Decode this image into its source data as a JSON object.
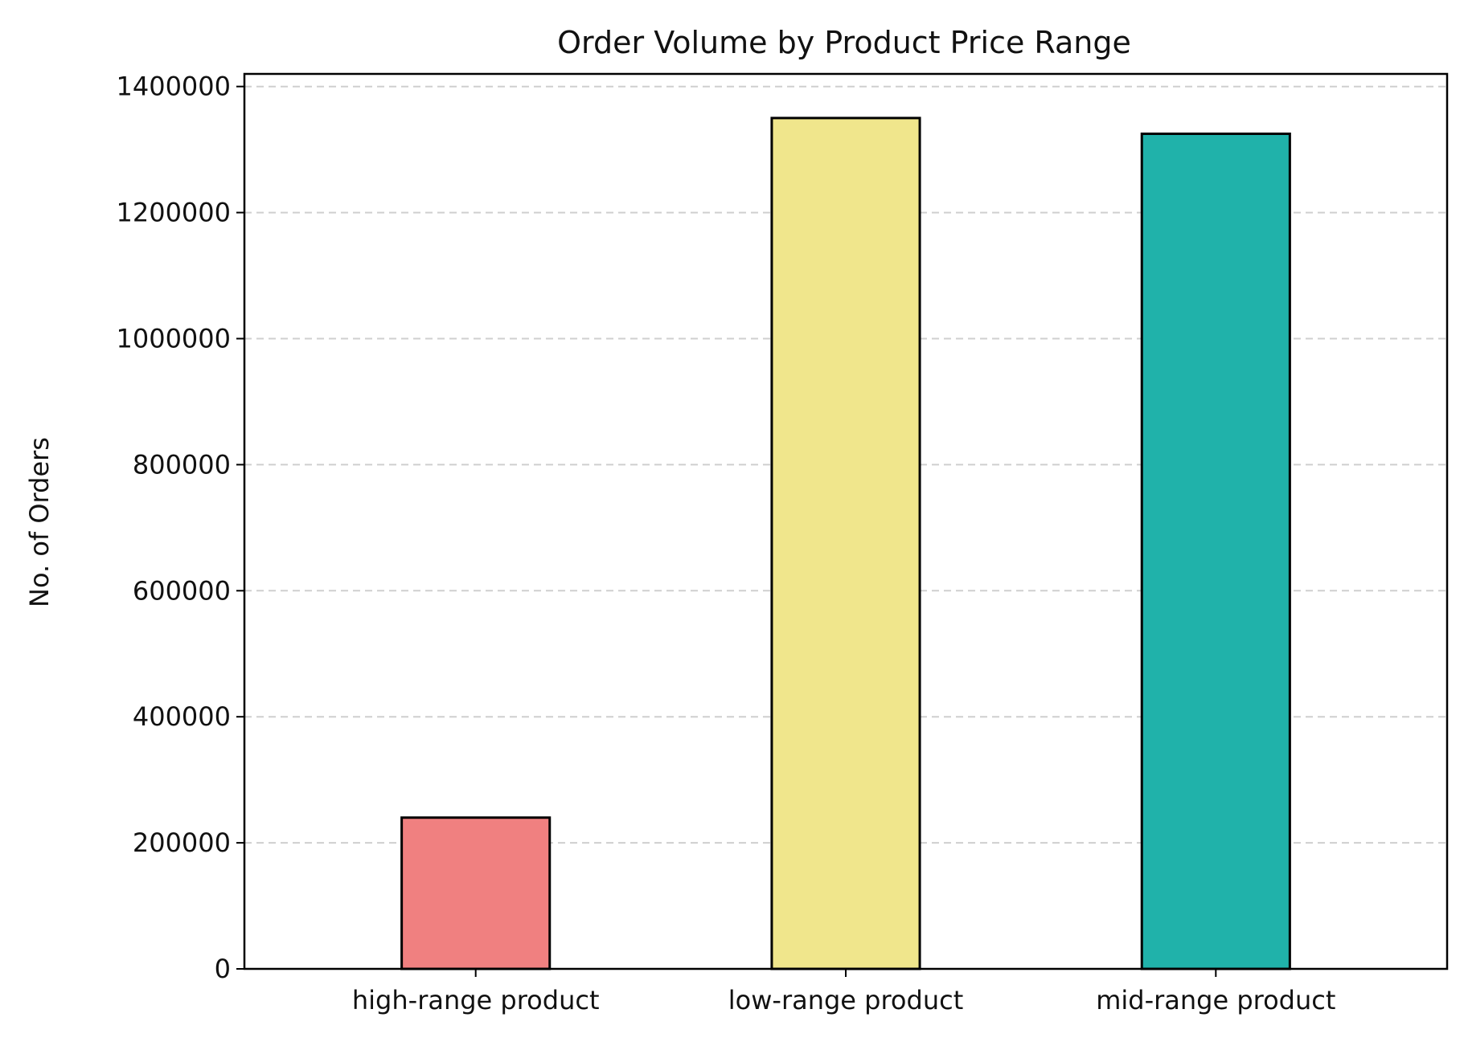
{
  "chart_data": {
    "type": "bar",
    "title": "Order Volume by Product Price Range",
    "xlabel": "",
    "ylabel": "No. of Orders",
    "categories": [
      "high-range product",
      "low-range product",
      "mid-range product"
    ],
    "values": [
      240000,
      1350000,
      1325000
    ],
    "colors": [
      "#f08080",
      "#f0e68c",
      "#20b2aa"
    ],
    "edge_color": "#000000",
    "ylim": [
      0,
      1420000
    ],
    "yticks": [
      0,
      200000,
      400000,
      600000,
      800000,
      1000000,
      1200000,
      1400000
    ],
    "ytick_labels": [
      "0",
      "200000",
      "400000",
      "600000",
      "800000",
      "1000000",
      "1200000",
      "1400000"
    ],
    "grid": "y-dashed",
    "grid_color": "#cfcfcf"
  }
}
